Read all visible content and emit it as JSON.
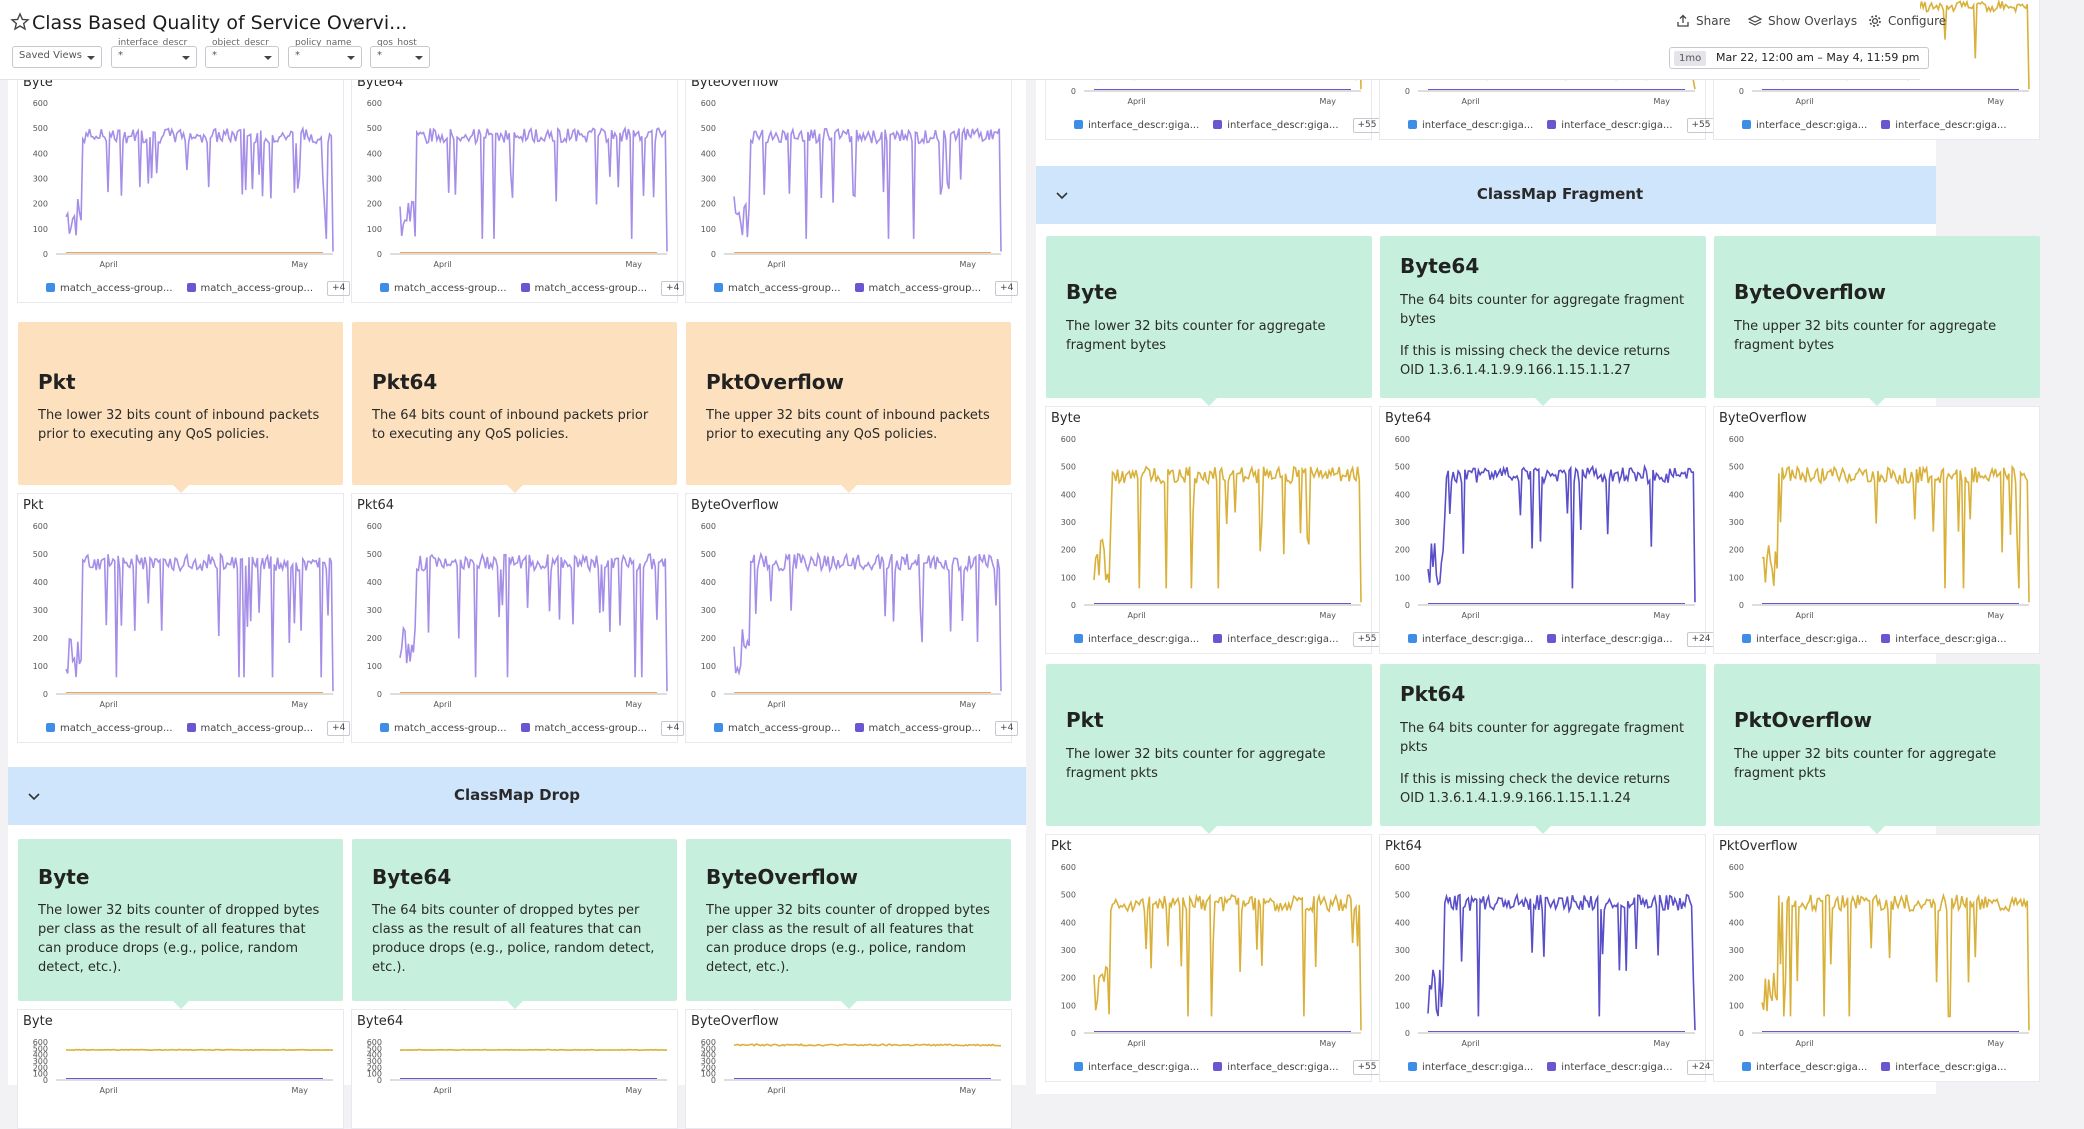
{
  "header": {
    "title": "Class Based Quality of Service Overvi...",
    "share_label": "Share",
    "overlays_label": "Show Overlays",
    "configure_label": "Configure",
    "saved_views": "Saved Views",
    "filters": [
      {
        "label": "interface_descr",
        "value": "*"
      },
      {
        "label": "object_descr",
        "value": "*"
      },
      {
        "label": "policy_name",
        "value": "*"
      },
      {
        "label": "qos_host",
        "value": "*"
      }
    ],
    "time_chip": "1mo",
    "time_range": "Mar 22, 12:00 am – May 4, 11:59 pm"
  },
  "axis": {
    "y_ticks": [
      "600",
      "500",
      "400",
      "300",
      "200",
      "100",
      "0"
    ],
    "x_ticks": [
      "April",
      "May"
    ]
  },
  "colors": {
    "lavender": "#a58ee8",
    "purple": "#5a4fc9",
    "gold": "#d9b13a",
    "legend_blue": "#3e8ee8",
    "legend_violet": "#6b55d0",
    "legend_gold": "#e0b43a"
  },
  "left_top_charts": [
    {
      "title": "Byte",
      "legend": [
        "match_access-group...",
        "match_access-group..."
      ],
      "more": "+4"
    },
    {
      "title": "Byte64",
      "legend": [
        "match_access-group...",
        "match_access-group..."
      ],
      "more": "+4"
    },
    {
      "title": "ByteOverflow",
      "legend": [
        "match_access-group...",
        "match_access-group..."
      ],
      "more": "+4"
    }
  ],
  "left_pkt_notes": [
    {
      "title": "Pkt",
      "desc": "The lower 32 bits count of inbound packets prior to executing any QoS policies."
    },
    {
      "title": "Pkt64",
      "desc": "The 64 bits count of inbound packets prior to executing any QoS policies."
    },
    {
      "title": "PktOverflow",
      "desc": "The upper 32 bits count of inbound packets prior to executing any QoS policies."
    }
  ],
  "left_pkt_charts": [
    {
      "title": "Pkt",
      "legend": [
        "match_access-group...",
        "match_access-group..."
      ],
      "more": "+4"
    },
    {
      "title": "Pkt64",
      "legend": [
        "match_access-group...",
        "match_access-group..."
      ],
      "more": "+4"
    },
    {
      "title": "ByteOverflow",
      "legend": [
        "match_access-group...",
        "match_access-group..."
      ],
      "more": "+4"
    }
  ],
  "classmap_drop": {
    "title": "ClassMap Drop",
    "notes": [
      {
        "title": "Byte",
        "desc": "The lower 32 bits counter of dropped bytes per class as the result of all features that can produce drops (e.g., police, random detect, etc.)."
      },
      {
        "title": "Byte64",
        "desc": "The 64 bits counter of dropped bytes per class as the result of all features that can produce drops (e.g., police, random detect, etc.)."
      },
      {
        "title": "ByteOverflow",
        "desc": "The upper 32 bits counter of dropped bytes per class as the result of all features that can produce drops (e.g., police, random detect, etc.)."
      }
    ],
    "charts": [
      {
        "title": "Byte"
      },
      {
        "title": "Byte64"
      },
      {
        "title": "ByteOverflow"
      }
    ]
  },
  "right_top_legends": [
    {
      "legend": [
        "interface_descr:giga...",
        "interface_descr:giga..."
      ],
      "more": "+55"
    },
    {
      "legend": [
        "interface_descr:giga...",
        "interface_descr:giga..."
      ],
      "more": "+55"
    },
    {
      "legend": [
        "interface_descr:giga...",
        "interface_descr:giga..."
      ],
      "more": ""
    }
  ],
  "classmap_fragment": {
    "title": "ClassMap Fragment",
    "byte_notes": [
      {
        "title": "Byte",
        "desc": "The lower 32 bits counter for aggregate fragment bytes",
        "desc2": ""
      },
      {
        "title": "Byte64",
        "desc": "The 64 bits counter for aggregate fragment bytes",
        "desc2": "If this is missing check the device returns OID 1.3.6.1.4.1.9.9.166.1.15.1.1.27"
      },
      {
        "title": "ByteOverflow",
        "desc": "The upper 32 bits counter for aggregate fragment bytes",
        "desc2": ""
      }
    ],
    "byte_charts": [
      {
        "title": "Byte",
        "legend": [
          "interface_descr:giga...",
          "interface_descr:giga..."
        ],
        "more": "+55"
      },
      {
        "title": "Byte64",
        "legend": [
          "interface_descr:giga...",
          "interface_descr:giga..."
        ],
        "more": "+24"
      },
      {
        "title": "ByteOverflow",
        "legend": [
          "interface_descr:giga...",
          "interface_descr:giga..."
        ],
        "more": ""
      }
    ],
    "pkt_notes": [
      {
        "title": "Pkt",
        "desc": "The lower 32 bits counter for aggregate fragment pkts",
        "desc2": ""
      },
      {
        "title": "Pkt64",
        "desc": "The 64 bits counter for aggregate fragment pkts",
        "desc2": "If this is missing check the device returns OID 1.3.6.1.4.1.9.9.166.1.15.1.1.24"
      },
      {
        "title": "PktOverflow",
        "desc": "The upper 32 bits counter for aggregate fragment pkts",
        "desc2": ""
      }
    ],
    "pkt_charts": [
      {
        "title": "Pkt",
        "legend": [
          "interface_descr:giga...",
          "interface_descr:giga..."
        ],
        "more": "+55"
      },
      {
        "title": "Pkt64",
        "legend": [
          "interface_descr:giga...",
          "interface_descr:giga..."
        ],
        "more": "+24"
      },
      {
        "title": "PktOverflow",
        "legend": [
          "interface_descr:giga...",
          "interface_descr:giga..."
        ],
        "more": ""
      }
    ]
  }
}
